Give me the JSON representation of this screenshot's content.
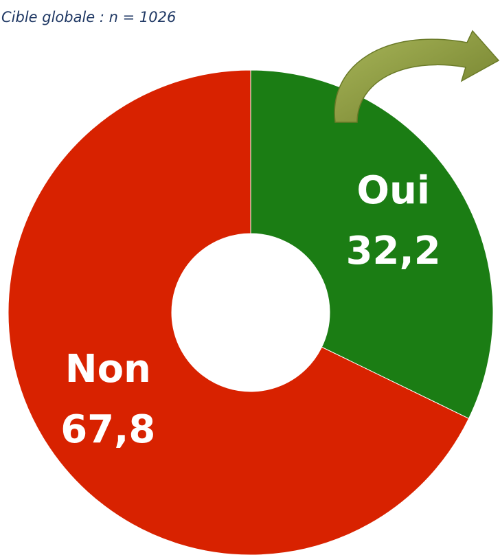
{
  "chart_data": {
    "type": "donut",
    "title": "Cible globale : n = 1026",
    "categories": [
      "Oui",
      "Non"
    ],
    "values": [
      32.2,
      67.8
    ],
    "value_labels": [
      "32,2",
      "67,8"
    ],
    "colors": [
      "#1b7d14",
      "#d82200"
    ]
  }
}
